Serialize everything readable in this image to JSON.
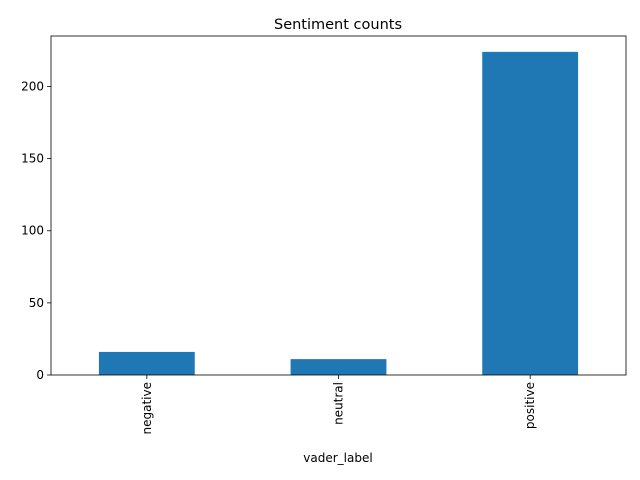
{
  "chart_data": {
    "type": "bar",
    "title": "Sentiment counts",
    "xlabel": "vader_label",
    "ylabel": "",
    "categories": [
      "negative",
      "neutral",
      "positive"
    ],
    "values": [
      16,
      11,
      224
    ],
    "ylim": [
      0,
      235
    ],
    "yticks": [
      0,
      50,
      100,
      150,
      200
    ],
    "xtick_rotation": 90,
    "grid": false,
    "legend": "none",
    "bar_color": "#1f77b4"
  }
}
